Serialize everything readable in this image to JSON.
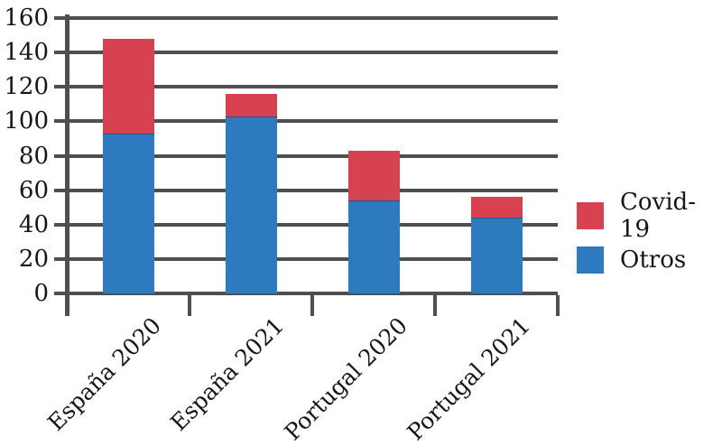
{
  "chart_data": {
    "type": "bar",
    "stacked": true,
    "categories": [
      "España 2020",
      "España 2021",
      "Portugal 2020",
      "Portugal 2021"
    ],
    "series": [
      {
        "name": "Covid-19",
        "color": "#d8414f",
        "values": [
          55,
          13,
          29,
          12
        ]
      },
      {
        "name": "Otros",
        "color": "#2e7abf",
        "values": [
          93,
          103,
          54,
          44
        ]
      }
    ],
    "xlabel": "",
    "ylabel": "",
    "ylim": [
      0,
      160
    ],
    "ytick_step": 20,
    "yticks": [
      0,
      20,
      40,
      60,
      80,
      100,
      120,
      140,
      160
    ],
    "grid": true,
    "legend_position": "right",
    "axis_color": "#4f4f4f",
    "text_color": "#161616",
    "background_color": "#ffffff"
  }
}
